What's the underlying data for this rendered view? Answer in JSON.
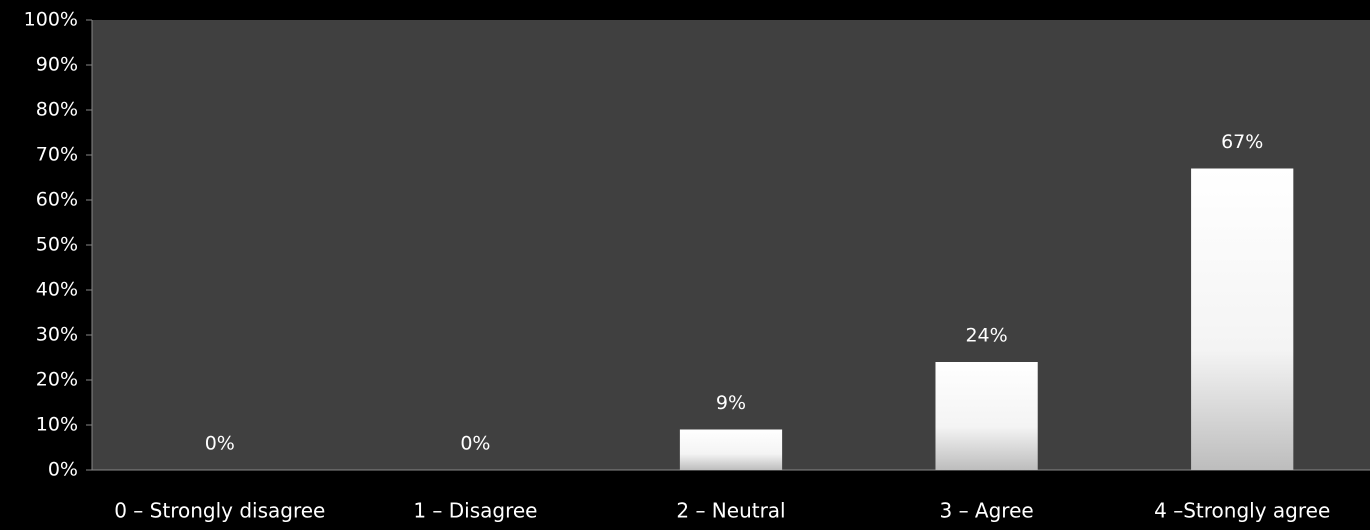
{
  "chart_data": {
    "type": "bar",
    "categories": [
      "0 – Strongly disagree",
      "1 – Disagree",
      "2 – Neutral",
      "3 – Agree",
      "4 –Strongly agree"
    ],
    "values": [
      0,
      0,
      9,
      24,
      67
    ],
    "value_labels": [
      "0%",
      "0%",
      "9%",
      "24%",
      "67%"
    ],
    "color": "#ffffff",
    "ylim": [
      0,
      100
    ],
    "yticks": [
      {
        "value": 0,
        "label": "0%"
      },
      {
        "value": 10,
        "label": "10%"
      },
      {
        "value": 20,
        "label": "20%"
      },
      {
        "value": 30,
        "label": "30%"
      },
      {
        "value": 40,
        "label": "40%"
      },
      {
        "value": 50,
        "label": "50%"
      },
      {
        "value": 60,
        "label": "60%"
      },
      {
        "value": 70,
        "label": "70%"
      },
      {
        "value": 80,
        "label": "80%"
      },
      {
        "value": 90,
        "label": "90%"
      },
      {
        "value": 100,
        "label": "100%"
      }
    ],
    "grid": false
  }
}
